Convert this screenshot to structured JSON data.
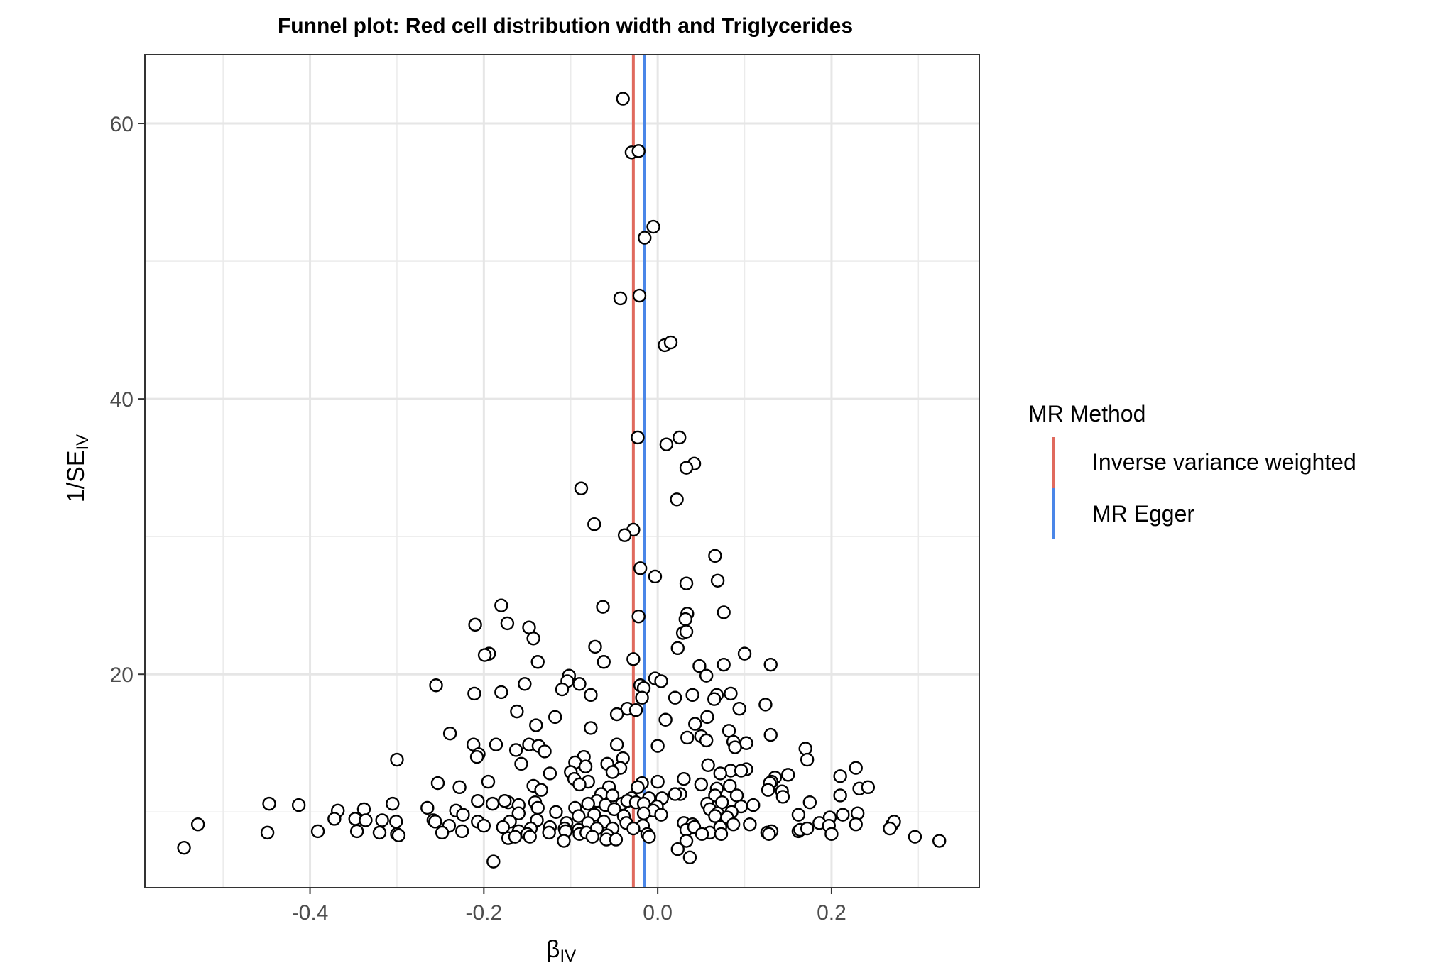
{
  "chart_data": {
    "type": "scatter",
    "title": "Funnel plot: Red cell distribution width and Triglycerides",
    "xlabel": "β",
    "xlabel_sub": "IV",
    "ylabel": "1/SE",
    "ylabel_sub": "IV",
    "xlim": [
      -0.59,
      0.37
    ],
    "ylim": [
      4.5,
      65
    ],
    "xticks": [
      -0.4,
      -0.2,
      0.0,
      0.2
    ],
    "xtick_labels": [
      "-0.4",
      "-0.2",
      "0.0",
      "0.2"
    ],
    "yticks": [
      20,
      40,
      60
    ],
    "ytick_labels": [
      "20",
      "40",
      "60"
    ],
    "grid": true,
    "legend": {
      "title": "MR Method",
      "position": "right",
      "entries": [
        {
          "label": "Inverse variance weighted",
          "color": "#E06A5E"
        },
        {
          "label": "MR Egger",
          "color": "#4A86E8"
        }
      ]
    },
    "lines": [
      {
        "name": "Inverse variance weighted",
        "x": -0.028,
        "color": "#E06A5E"
      },
      {
        "name": "MR Egger",
        "x": -0.015,
        "color": "#4A86E8"
      }
    ],
    "points": [
      [
        -0.04,
        61.8
      ],
      [
        -0.03,
        57.9
      ],
      [
        -0.022,
        58.0
      ],
      [
        -0.005,
        52.5
      ],
      [
        -0.015,
        51.7
      ],
      [
        -0.043,
        47.3
      ],
      [
        -0.021,
        47.5
      ],
      [
        0.008,
        43.9
      ],
      [
        0.015,
        44.1
      ],
      [
        -0.023,
        37.2
      ],
      [
        0.025,
        37.2
      ],
      [
        0.01,
        36.7
      ],
      [
        0.042,
        35.3
      ],
      [
        0.033,
        35.0
      ],
      [
        -0.088,
        33.5
      ],
      [
        0.022,
        32.7
      ],
      [
        -0.073,
        30.9
      ],
      [
        -0.028,
        30.5
      ],
      [
        -0.038,
        30.1
      ],
      [
        0.066,
        28.6
      ],
      [
        -0.02,
        27.7
      ],
      [
        -0.003,
        27.1
      ],
      [
        0.069,
        26.8
      ],
      [
        0.033,
        26.6
      ],
      [
        -0.18,
        25.0
      ],
      [
        -0.063,
        24.9
      ],
      [
        0.034,
        24.4
      ],
      [
        0.032,
        24.0
      ],
      [
        -0.022,
        24.2
      ],
      [
        0.076,
        24.5
      ],
      [
        -0.21,
        23.6
      ],
      [
        -0.173,
        23.7
      ],
      [
        -0.148,
        23.4
      ],
      [
        0.029,
        23.0
      ],
      [
        0.033,
        23.1
      ],
      [
        -0.143,
        22.6
      ],
      [
        -0.072,
        22.0
      ],
      [
        0.023,
        21.9
      ],
      [
        -0.194,
        21.5
      ],
      [
        -0.199,
        21.4
      ],
      [
        0.1,
        21.5
      ],
      [
        -0.138,
        20.9
      ],
      [
        -0.062,
        20.9
      ],
      [
        -0.028,
        21.1
      ],
      [
        0.048,
        20.6
      ],
      [
        0.076,
        20.7
      ],
      [
        0.13,
        20.7
      ],
      [
        -0.102,
        19.9
      ],
      [
        0.056,
        19.9
      ],
      [
        -0.104,
        19.5
      ],
      [
        -0.003,
        19.7
      ],
      [
        0.004,
        19.5
      ],
      [
        -0.09,
        19.3
      ],
      [
        -0.153,
        19.3
      ],
      [
        -0.255,
        19.2
      ],
      [
        -0.02,
        19.2
      ],
      [
        -0.016,
        19.0
      ],
      [
        -0.11,
        18.9
      ],
      [
        -0.18,
        18.7
      ],
      [
        -0.211,
        18.6
      ],
      [
        -0.077,
        18.5
      ],
      [
        0.04,
        18.5
      ],
      [
        0.068,
        18.5
      ],
      [
        0.084,
        18.6
      ],
      [
        0.065,
        18.2
      ],
      [
        0.02,
        18.3
      ],
      [
        -0.018,
        18.3
      ],
      [
        -0.162,
        17.3
      ],
      [
        -0.035,
        17.5
      ],
      [
        -0.047,
        17.1
      ],
      [
        -0.025,
        17.4
      ],
      [
        0.124,
        17.8
      ],
      [
        0.094,
        17.5
      ],
      [
        -0.118,
        16.9
      ],
      [
        0.057,
        16.9
      ],
      [
        0.009,
        16.7
      ],
      [
        -0.14,
        16.3
      ],
      [
        -0.077,
        16.1
      ],
      [
        0.043,
        16.4
      ],
      [
        0.05,
        15.5
      ],
      [
        0.082,
        15.9
      ],
      [
        -0.239,
        15.7
      ],
      [
        0.034,
        15.4
      ],
      [
        0.056,
        15.2
      ],
      [
        0.13,
        15.6
      ],
      [
        0.087,
        15.1
      ],
      [
        0.102,
        15.0
      ],
      [
        -0.186,
        14.9
      ],
      [
        -0.212,
        14.9
      ],
      [
        -0.148,
        14.9
      ],
      [
        -0.137,
        14.8
      ],
      [
        -0.047,
        14.9
      ],
      [
        0.0,
        14.8
      ],
      [
        0.089,
        14.7
      ],
      [
        0.17,
        14.6
      ],
      [
        -0.163,
        14.5
      ],
      [
        -0.13,
        14.4
      ],
      [
        -0.206,
        14.2
      ],
      [
        -0.208,
        14.0
      ],
      [
        -0.085,
        14.0
      ],
      [
        -0.04,
        13.9
      ],
      [
        0.172,
        13.8
      ],
      [
        -0.3,
        13.8
      ],
      [
        -0.157,
        13.5
      ],
      [
        -0.095,
        13.6
      ],
      [
        -0.058,
        13.5
      ],
      [
        -0.043,
        13.2
      ],
      [
        0.058,
        13.4
      ],
      [
        0.228,
        13.2
      ],
      [
        -0.083,
        13.3
      ],
      [
        0.084,
        13.0
      ],
      [
        0.102,
        13.1
      ],
      [
        0.096,
        13.0
      ],
      [
        0.072,
        12.8
      ],
      [
        -0.124,
        12.8
      ],
      [
        -0.1,
        12.9
      ],
      [
        -0.052,
        12.9
      ],
      [
        0.15,
        12.7
      ],
      [
        0.21,
        12.6
      ],
      [
        0.135,
        12.5
      ],
      [
        -0.096,
        12.4
      ],
      [
        0.03,
        12.4
      ],
      [
        -0.08,
        12.2
      ],
      [
        0.0,
        12.2
      ],
      [
        -0.253,
        12.1
      ],
      [
        -0.195,
        12.2
      ],
      [
        -0.143,
        11.9
      ],
      [
        -0.09,
        12.0
      ],
      [
        -0.018,
        12.1
      ],
      [
        0.05,
        12.0
      ],
      [
        0.131,
        12.2
      ],
      [
        0.129,
        12.1
      ],
      [
        0.083,
        11.9
      ],
      [
        -0.134,
        11.6
      ],
      [
        -0.228,
        11.8
      ],
      [
        -0.056,
        11.8
      ],
      [
        -0.023,
        11.8
      ],
      [
        0.068,
        11.7
      ],
      [
        0.232,
        11.7
      ],
      [
        0.242,
        11.8
      ],
      [
        0.127,
        11.6
      ],
      [
        0.143,
        11.5
      ],
      [
        -0.065,
        11.3
      ],
      [
        -0.052,
        11.2
      ],
      [
        0.026,
        11.3
      ],
      [
        0.02,
        11.3
      ],
      [
        0.066,
        11.2
      ],
      [
        0.091,
        11.2
      ],
      [
        -0.03,
        11.0
      ],
      [
        -0.01,
        11.0
      ],
      [
        0.005,
        11.0
      ],
      [
        0.144,
        11.1
      ],
      [
        0.21,
        11.2
      ],
      [
        -0.07,
        10.8
      ],
      [
        -0.041,
        10.6
      ],
      [
        -0.035,
        10.8
      ],
      [
        -0.025,
        10.7
      ],
      [
        -0.207,
        10.8
      ],
      [
        -0.172,
        10.7
      ],
      [
        -0.141,
        10.7
      ],
      [
        -0.176,
        10.8
      ],
      [
        -0.447,
        10.6
      ],
      [
        -0.413,
        10.5
      ],
      [
        -0.305,
        10.6
      ],
      [
        -0.19,
        10.6
      ],
      [
        -0.16,
        10.5
      ],
      [
        -0.08,
        10.6
      ],
      [
        -0.06,
        10.5
      ],
      [
        -0.016,
        10.6
      ],
      [
        -0.001,
        10.4
      ],
      [
        0.057,
        10.6
      ],
      [
        0.074,
        10.7
      ],
      [
        0.096,
        10.4
      ],
      [
        0.11,
        10.5
      ],
      [
        0.175,
        10.7
      ],
      [
        -0.265,
        10.3
      ],
      [
        -0.138,
        10.3
      ],
      [
        -0.095,
        10.3
      ],
      [
        -0.05,
        10.2
      ],
      [
        -0.005,
        10.1
      ],
      [
        0.06,
        10.2
      ],
      [
        0.069,
        9.9
      ],
      [
        0.085,
        10.0
      ],
      [
        -0.368,
        10.1
      ],
      [
        -0.338,
        10.2
      ],
      [
        -0.232,
        10.1
      ],
      [
        -0.224,
        9.8
      ],
      [
        -0.16,
        9.9
      ],
      [
        -0.117,
        10.0
      ],
      [
        -0.091,
        9.7
      ],
      [
        -0.073,
        9.8
      ],
      [
        -0.039,
        9.7
      ],
      [
        -0.016,
        9.9
      ],
      [
        0.004,
        9.8
      ],
      [
        0.066,
        9.7
      ],
      [
        0.08,
        9.6
      ],
      [
        0.162,
        9.8
      ],
      [
        0.198,
        9.6
      ],
      [
        0.213,
        9.8
      ],
      [
        0.23,
        9.9
      ],
      [
        -0.372,
        9.5
      ],
      [
        -0.348,
        9.5
      ],
      [
        -0.336,
        9.4
      ],
      [
        -0.317,
        9.4
      ],
      [
        -0.301,
        9.3
      ],
      [
        -0.258,
        9.4
      ],
      [
        -0.256,
        9.3
      ],
      [
        -0.207,
        9.3
      ],
      [
        -0.17,
        9.3
      ],
      [
        -0.139,
        9.4
      ],
      [
        -0.105,
        9.2
      ],
      [
        -0.08,
        9.2
      ],
      [
        -0.062,
        9.3
      ],
      [
        -0.036,
        9.2
      ],
      [
        -0.017,
        9.0
      ],
      [
        0.03,
        9.2
      ],
      [
        0.04,
        9.1
      ],
      [
        0.087,
        9.1
      ],
      [
        0.106,
        9.1
      ],
      [
        0.186,
        9.2
      ],
      [
        0.197,
        9.0
      ],
      [
        0.228,
        9.1
      ],
      [
        0.27,
        9.1
      ],
      [
        0.272,
        9.3
      ],
      [
        -0.529,
        9.1
      ],
      [
        -0.2,
        9.0
      ],
      [
        -0.24,
        9.0
      ],
      [
        -0.178,
        8.9
      ],
      [
        -0.146,
        8.8
      ],
      [
        -0.124,
        8.9
      ],
      [
        -0.107,
        8.8
      ],
      [
        -0.091,
        8.7
      ],
      [
        -0.07,
        8.8
      ],
      [
        -0.052,
        8.8
      ],
      [
        -0.028,
        8.8
      ],
      [
        0.033,
        8.7
      ],
      [
        0.042,
        8.9
      ],
      [
        0.06,
        8.5
      ],
      [
        0.072,
        8.9
      ],
      [
        0.126,
        8.5
      ],
      [
        0.131,
        8.6
      ],
      [
        0.162,
        8.6
      ],
      [
        0.164,
        8.7
      ],
      [
        0.172,
        8.8
      ],
      [
        0.2,
        8.4
      ],
      [
        0.267,
        8.8
      ],
      [
        -0.449,
        8.5
      ],
      [
        -0.391,
        8.6
      ],
      [
        -0.346,
        8.6
      ],
      [
        -0.32,
        8.5
      ],
      [
        -0.3,
        8.4
      ],
      [
        -0.298,
        8.3
      ],
      [
        -0.248,
        8.5
      ],
      [
        -0.225,
        8.6
      ],
      [
        -0.16,
        8.6
      ],
      [
        -0.15,
        8.4
      ],
      [
        -0.125,
        8.5
      ],
      [
        -0.106,
        8.6
      ],
      [
        -0.09,
        8.4
      ],
      [
        -0.082,
        8.5
      ],
      [
        -0.058,
        8.3
      ],
      [
        -0.012,
        8.4
      ],
      [
        0.051,
        8.4
      ],
      [
        0.073,
        8.4
      ],
      [
        0.128,
        8.4
      ],
      [
        -0.172,
        8.1
      ],
      [
        -0.164,
        8.2
      ],
      [
        -0.147,
        8.2
      ],
      [
        -0.108,
        7.9
      ],
      [
        -0.075,
        8.2
      ],
      [
        -0.059,
        8.0
      ],
      [
        -0.048,
        8.0
      ],
      [
        -0.01,
        8.2
      ],
      [
        0.033,
        7.9
      ],
      [
        0.296,
        8.2
      ],
      [
        0.324,
        7.9
      ],
      [
        -0.545,
        7.4
      ],
      [
        0.023,
        7.3
      ],
      [
        0.037,
        6.7
      ],
      [
        -0.189,
        6.4
      ]
    ]
  }
}
